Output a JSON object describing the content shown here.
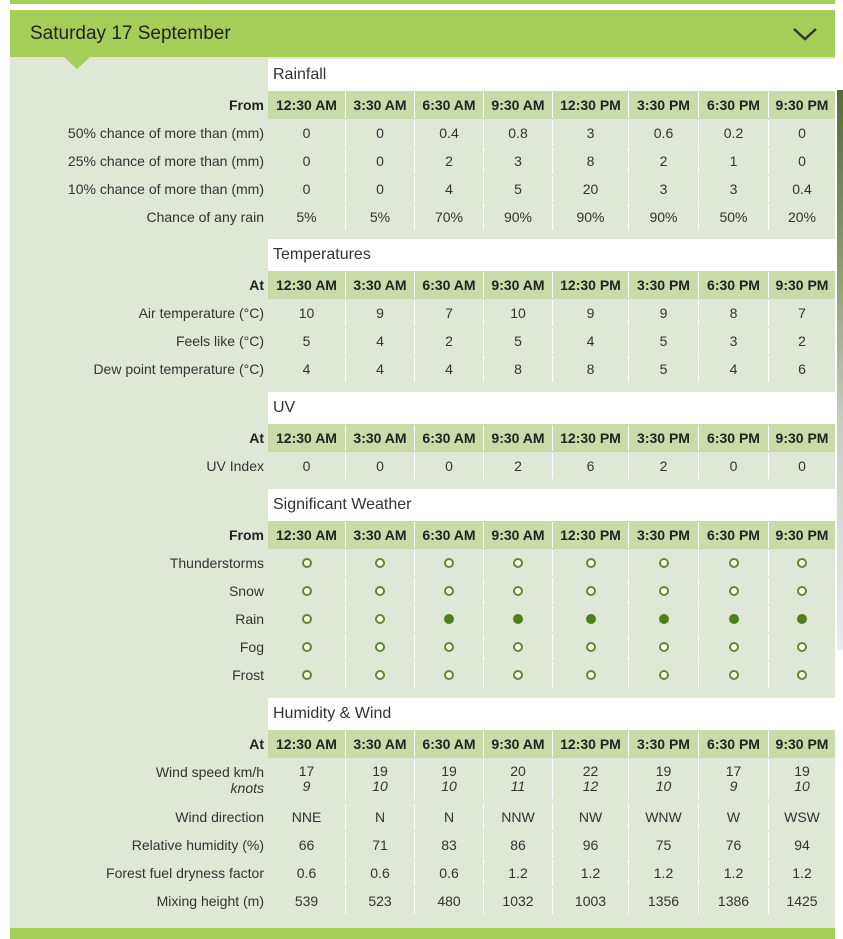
{
  "header": {
    "title": "Saturday 17 September",
    "toggle_icon": "chevron-down-icon"
  },
  "colors": {
    "accent": "#a3cf58",
    "panel": "#dfe7d7",
    "time_row": "#c8dba8",
    "dot_on": "#4e7e1a"
  },
  "times": [
    "12:30 AM",
    "3:30 AM",
    "6:30 AM",
    "9:30 AM",
    "12:30 PM",
    "3:30 PM",
    "6:30 PM",
    "9:30 PM"
  ],
  "sections": {
    "rainfall": {
      "title": "Rainfall",
      "time_label": "From",
      "rows": [
        {
          "label": "50% chance of more than (mm)",
          "values": [
            "0",
            "0",
            "0.4",
            "0.8",
            "3",
            "0.6",
            "0.2",
            "0"
          ]
        },
        {
          "label": "25% chance of more than (mm)",
          "values": [
            "0",
            "0",
            "2",
            "3",
            "8",
            "2",
            "1",
            "0"
          ]
        },
        {
          "label": "10% chance of more than (mm)",
          "values": [
            "0",
            "0",
            "4",
            "5",
            "20",
            "3",
            "3",
            "0.4"
          ]
        },
        {
          "label": "Chance of any rain",
          "values": [
            "5%",
            "5%",
            "70%",
            "90%",
            "90%",
            "90%",
            "50%",
            "20%"
          ]
        }
      ]
    },
    "temperatures": {
      "title": "Temperatures",
      "time_label": "At",
      "rows": [
        {
          "label": "Air temperature (°C)",
          "values": [
            "10",
            "9",
            "7",
            "10",
            "9",
            "9",
            "8",
            "7"
          ]
        },
        {
          "label": "Feels like (°C)",
          "values": [
            "5",
            "4",
            "2",
            "5",
            "4",
            "5",
            "3",
            "2"
          ]
        },
        {
          "label": "Dew point temperature (°C)",
          "values": [
            "4",
            "4",
            "4",
            "8",
            "8",
            "5",
            "4",
            "6"
          ]
        }
      ]
    },
    "uv": {
      "title": "UV",
      "time_label": "At",
      "rows": [
        {
          "label": "UV Index",
          "values": [
            "0",
            "0",
            "0",
            "2",
            "6",
            "2",
            "0",
            "0"
          ]
        }
      ]
    },
    "weather": {
      "title": "Significant Weather",
      "time_label": "From",
      "rows": [
        {
          "label": "Thunderstorms",
          "values": [
            false,
            false,
            false,
            false,
            false,
            false,
            false,
            false
          ]
        },
        {
          "label": "Snow",
          "values": [
            false,
            false,
            false,
            false,
            false,
            false,
            false,
            false
          ]
        },
        {
          "label": "Rain",
          "values": [
            false,
            false,
            true,
            true,
            true,
            true,
            true,
            true
          ]
        },
        {
          "label": "Fog",
          "values": [
            false,
            false,
            false,
            false,
            false,
            false,
            false,
            false
          ]
        },
        {
          "label": "Frost",
          "values": [
            false,
            false,
            false,
            false,
            false,
            false,
            false,
            false
          ]
        }
      ]
    },
    "humidity": {
      "title": "Humidity & Wind",
      "time_label": "At",
      "wind_speed": {
        "label": "Wind speed km/h",
        "sublabel": "knots",
        "kmh": [
          "17",
          "19",
          "19",
          "20",
          "22",
          "19",
          "17",
          "19"
        ],
        "knots": [
          "9",
          "10",
          "10",
          "11",
          "12",
          "10",
          "9",
          "10"
        ]
      },
      "rows": [
        {
          "label": "Wind direction",
          "values": [
            "NNE",
            "N",
            "N",
            "NNW",
            "NW",
            "WNW",
            "W",
            "WSW"
          ]
        },
        {
          "label": "Relative humidity (%)",
          "values": [
            "66",
            "71",
            "83",
            "86",
            "96",
            "75",
            "76",
            "94"
          ]
        },
        {
          "label": "Forest fuel dryness factor",
          "values": [
            "0.6",
            "0.6",
            "0.6",
            "1.2",
            "1.2",
            "1.2",
            "1.2",
            "1.2"
          ]
        },
        {
          "label": "Mixing height (m)",
          "values": [
            "539",
            "523",
            "480",
            "1032",
            "1003",
            "1356",
            "1386",
            "1425"
          ]
        }
      ]
    }
  }
}
